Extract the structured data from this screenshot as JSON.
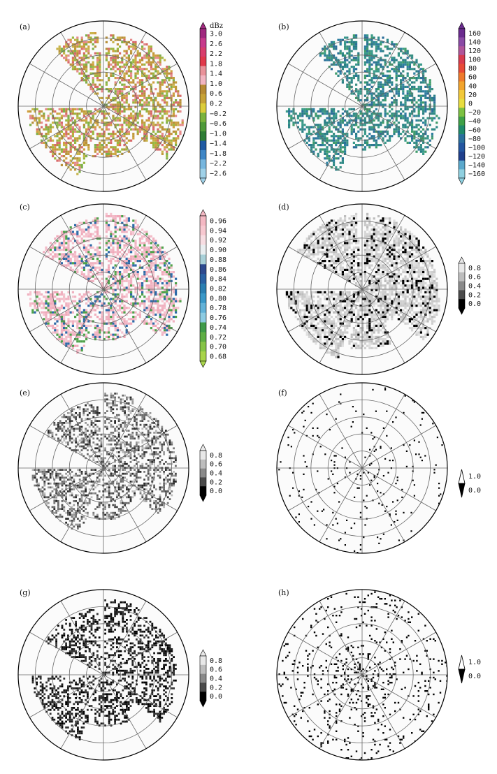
{
  "figure": {
    "colors": {
      "background": "#ffffff",
      "ring_line": "#666666",
      "outer_ring": "#000000",
      "empty_disk": "#fbfbfb"
    },
    "panels": [
      {
        "id": "a",
        "label": "(a)",
        "colorbar": {
          "unit": "dBz",
          "ticks": [
            "3.0",
            "2.6",
            "2.2",
            "1.8",
            "1.4",
            "1.0",
            "0.6",
            "0.2",
            "−0.2",
            "−0.6",
            "−1.0",
            "−1.4",
            "−1.8",
            "−2.2",
            "−2.6"
          ],
          "colors": [
            "#a0297f",
            "#c73a8b",
            "#d83e6c",
            "#e0394b",
            "#e9929a",
            "#f2b5c1",
            "#b78a33",
            "#c7a236",
            "#dccd3a",
            "#7bb33d",
            "#4f9a3a",
            "#2e7c35",
            "#1f5aa3",
            "#3f86c6",
            "#77b6de",
            "#9fd1e8"
          ]
        },
        "cover_colors": [
          "#b7903a",
          "#c19a3c",
          "#d0a040",
          "#d86a6a",
          "#e58a8a",
          "#9bb840",
          "#7fb04a",
          "#c8b34a"
        ]
      },
      {
        "id": "b",
        "label": "(b)",
        "colorbar": {
          "unit": "",
          "ticks": [
            "160",
            "140",
            "120",
            "100",
            "80",
            "60",
            "40",
            "20",
            "0",
            "−20",
            "−40",
            "−60",
            "−80",
            "−100",
            "−120",
            "−140",
            "−160"
          ],
          "colors": [
            "#6a2b8e",
            "#8a4aa5",
            "#b0559a",
            "#d83b4f",
            "#e84a37",
            "#ef7a2c",
            "#f2a42d",
            "#f2c93a",
            "#e8dd40",
            "#7cc142",
            "#3ea047",
            "#1f8a6b",
            "#2a6f9d",
            "#2355a0",
            "#1f3f8c",
            "#5aa8cc",
            "#8fd0e0"
          ]
        },
        "cover_colors": [
          "#2f8a87",
          "#2a7f86",
          "#3a9a8a",
          "#2f7fa0",
          "#3f9c6a",
          "#2c6f99",
          "#3a8f83"
        ]
      },
      {
        "id": "c",
        "label": "(c)",
        "colorbar": {
          "unit": "",
          "ticks": [
            "0.96",
            "0.94",
            "0.92",
            "0.90",
            "0.88",
            "0.86",
            "0.84",
            "0.82",
            "0.80",
            "0.78",
            "0.76",
            "0.74",
            "0.72",
            "0.70",
            "0.68"
          ],
          "colors": [
            "#f4b8c3",
            "#f7c8d0",
            "#f7dde2",
            "#e9eef0",
            "#a8d0d8",
            "#2d4a8f",
            "#2a62a4",
            "#2a7fb2",
            "#3a98c8",
            "#62b2d8",
            "#8ccbe2",
            "#3f9a4a",
            "#5fae45",
            "#86c447",
            "#a8d44a"
          ]
        },
        "cover_colors": [
          "#f0b1c0",
          "#f3bcc8",
          "#f0a8b8",
          "#f5c4cf",
          "#f0b1c0",
          "#4fa24a",
          "#2e6aa8"
        ]
      },
      {
        "id": "d",
        "label": "(d)",
        "colorbar": {
          "unit": "",
          "ticks": [
            "0.8",
            "0.6",
            "0.4",
            "0.2",
            "0.0"
          ],
          "colors": [
            "#e8e8e8",
            "#bdbdbd",
            "#8a8a8a",
            "#4a4a4a",
            "#000000"
          ]
        },
        "cover_colors": [
          "#d6d6d6",
          "#c9c9c9",
          "#bdbdbd",
          "#e0e0e0",
          "#cfcfcf",
          "#000000"
        ]
      },
      {
        "id": "e",
        "label": "(e)",
        "colorbar": {
          "unit": "",
          "ticks": [
            "0.8",
            "0.6",
            "0.4",
            "0.2",
            "0.0"
          ],
          "colors": [
            "#e8e8e8",
            "#bdbdbd",
            "#8a8a8a",
            "#4a4a4a",
            "#000000"
          ]
        },
        "cover_colors": [
          "#6a6a6a",
          "#4a4a4a",
          "#9a9a9a",
          "#2a2a2a",
          "#7a7a7a",
          "#bcbcbc"
        ]
      },
      {
        "id": "f",
        "label": "(f)",
        "colorbar": {
          "unit": "",
          "ticks": [
            "1.0",
            "0.0"
          ],
          "colors": [
            "#ffffff",
            "#000000"
          ]
        },
        "cover_colors": [
          "#000000"
        ]
      },
      {
        "id": "g",
        "label": "(g)",
        "colorbar": {
          "unit": "",
          "ticks": [
            "0.8",
            "0.6",
            "0.4",
            "0.2",
            "0.0"
          ],
          "colors": [
            "#e8e8e8",
            "#bdbdbd",
            "#8a8a8a",
            "#4a4a4a",
            "#000000"
          ]
        },
        "cover_colors": [
          "#000000",
          "#1a1a1a",
          "#333333"
        ]
      },
      {
        "id": "h",
        "label": "(h)",
        "colorbar": {
          "unit": "",
          "ticks": [
            "1.0",
            "0.0"
          ],
          "colors": [
            "#ffffff",
            "#000000"
          ]
        },
        "cover_colors": [
          "#000000"
        ]
      }
    ]
  }
}
